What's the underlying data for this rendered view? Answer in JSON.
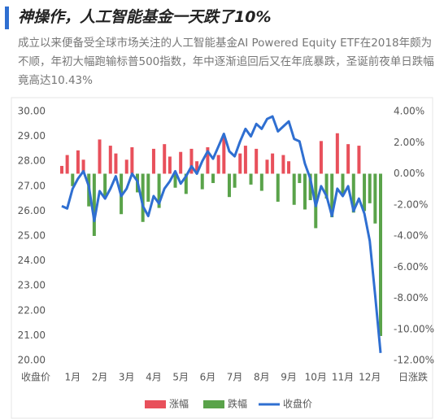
{
  "chart_data": {
    "type": "combo",
    "title": "神操作，人工智能基金一天跌了10%",
    "subtitle": "成立以来便备受全球市场关注的人工智能基金AI Powered Equity ETF在2018年颇为不顺，年初大幅跑输标普500指数，年中逐渐追回后又在年底暴跌，圣诞前夜单日跌幅竟高达10.43%",
    "ylabel": "收盘价",
    "y2label": "日涨跌",
    "categories": [
      null,
      null,
      "1月",
      null,
      null,
      null,
      null,
      "2月",
      null,
      null,
      null,
      null,
      "3月",
      null,
      null,
      null,
      null,
      "4月",
      null,
      null,
      null,
      null,
      "5月",
      null,
      null,
      null,
      null,
      "6月",
      null,
      null,
      null,
      null,
      "7月",
      null,
      null,
      null,
      null,
      "8月",
      null,
      null,
      null,
      null,
      "9月",
      null,
      null,
      null,
      null,
      "10月",
      null,
      null,
      null,
      null,
      "11月",
      null,
      null,
      null,
      null,
      "12月",
      null,
      null
    ],
    "series": [
      {
        "name": "涨幅",
        "type": "bar",
        "axis": "y2",
        "color": "#e8505b",
        "values": [
          0.5,
          1.2,
          null,
          1.5,
          0.9,
          null,
          null,
          2.2,
          null,
          1.8,
          1.3,
          null,
          0.9,
          1.7,
          null,
          null,
          null,
          1.6,
          null,
          1.9,
          1.1,
          null,
          1.4,
          null,
          1.6,
          0.8,
          null,
          1.7,
          null,
          1.2,
          2.4,
          null,
          null,
          1.3,
          1.8,
          null,
          1.6,
          null,
          0.9,
          1.3,
          null,
          1.2,
          0.8,
          null,
          null,
          null,
          null,
          null,
          2.1,
          null,
          null,
          2.6,
          null,
          1.9,
          null,
          1.8,
          null,
          null,
          null,
          null
        ]
      },
      {
        "name": "跌幅",
        "type": "bar",
        "axis": "y2",
        "color": "#5aa34a",
        "values": [
          null,
          null,
          -0.8,
          null,
          null,
          -2.1,
          -4.0,
          null,
          -1.5,
          null,
          null,
          -2.6,
          null,
          null,
          -1.2,
          -3.1,
          -1.8,
          null,
          -2.2,
          null,
          null,
          -0.9,
          null,
          -1.3,
          null,
          null,
          -1.0,
          null,
          -0.6,
          null,
          null,
          -1.5,
          -0.9,
          null,
          null,
          -0.7,
          null,
          -1.1,
          null,
          null,
          -1.8,
          null,
          null,
          -2.0,
          -0.6,
          -2.3,
          -1.7,
          -3.5,
          null,
          -1.6,
          -2.8,
          null,
          -1.4,
          null,
          -2.5,
          null,
          -2.4,
          -1.9,
          -3.2,
          -10.43
        ]
      },
      {
        "name": "收盘价",
        "type": "line",
        "color": "#2f6fd1",
        "values": [
          26.2,
          26.1,
          26.9,
          27.3,
          27.6,
          27.0,
          25.6,
          26.8,
          26.5,
          26.9,
          27.4,
          26.6,
          26.9,
          27.5,
          27.2,
          26.2,
          25.8,
          26.6,
          26.3,
          26.9,
          27.2,
          27.6,
          27.1,
          27.4,
          27.8,
          27.5,
          28.0,
          28.4,
          28.1,
          28.6,
          29.1,
          28.4,
          28.2,
          28.8,
          29.3,
          29.0,
          29.5,
          29.3,
          29.7,
          29.8,
          29.2,
          29.4,
          29.6,
          28.9,
          28.8,
          27.9,
          27.3,
          26.2,
          27.0,
          26.6,
          25.8,
          26.9,
          26.6,
          27.0,
          26.0,
          26.5,
          25.9,
          24.8,
          22.6,
          20.3
        ]
      }
    ],
    "ylim": [
      20,
      30
    ],
    "yticks": [
      {
        "value": 20,
        "label": "20.00"
      },
      {
        "value": 21,
        "label": "21.00"
      },
      {
        "value": 22,
        "label": "22.00"
      },
      {
        "value": 23,
        "label": "23.00"
      },
      {
        "value": 24,
        "label": "24.00"
      },
      {
        "value": 25,
        "label": "25.00"
      },
      {
        "value": 26,
        "label": "26.00"
      },
      {
        "value": 27,
        "label": "27.00"
      },
      {
        "value": 28,
        "label": "28.00"
      },
      {
        "value": 29,
        "label": "29.00"
      },
      {
        "value": 30,
        "label": "30.00"
      }
    ],
    "y2lim": [
      -12,
      4
    ],
    "y2ticks": [
      {
        "value": -12,
        "label": "-12.00%"
      },
      {
        "value": -10,
        "label": "-10.00%"
      },
      {
        "value": -8,
        "label": "-8.00%"
      },
      {
        "value": -6,
        "label": "-6.00%"
      },
      {
        "value": -4,
        "label": "-4.00%"
      },
      {
        "value": -2,
        "label": "-2.00%"
      },
      {
        "value": 0,
        "label": "0.00%"
      },
      {
        "value": 2,
        "label": "2.00%"
      },
      {
        "value": 4,
        "label": "4.00%"
      }
    ],
    "grid": false,
    "legend": "bottom"
  }
}
